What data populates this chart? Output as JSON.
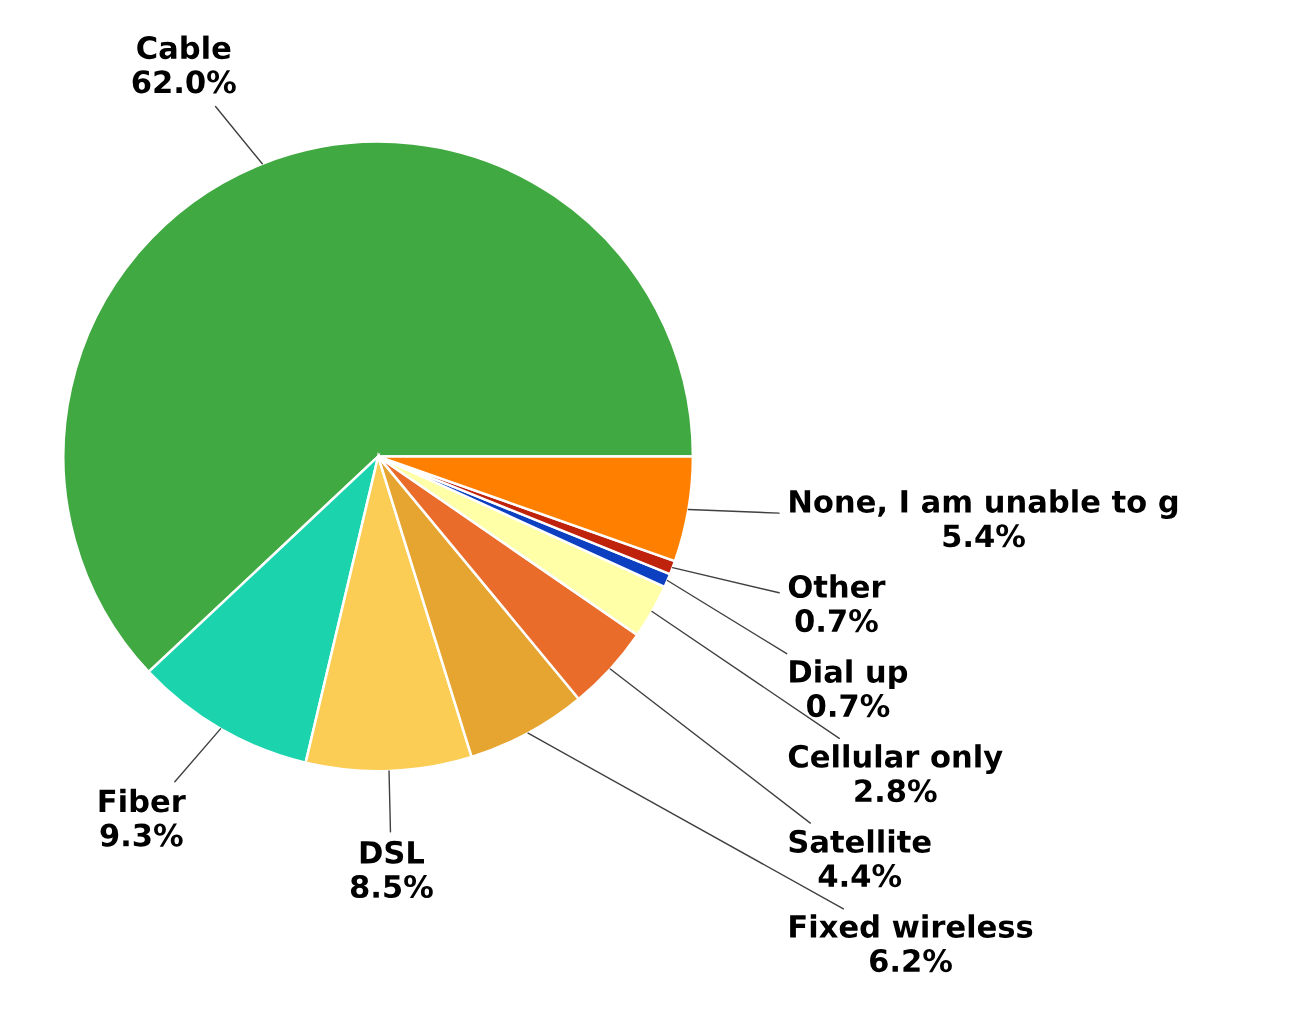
{
  "chart_data": {
    "type": "pie",
    "categories": [
      "Cable",
      "Fiber",
      "DSL",
      "Fixed wireless",
      "Satellite",
      "Cellular only",
      "Dial up",
      "Other",
      "None, I am unable to g"
    ],
    "values": [
      62.0,
      9.3,
      8.5,
      6.2,
      4.4,
      2.8,
      0.7,
      0.7,
      5.4
    ],
    "value_labels": [
      "62.0%",
      "9.3%",
      "8.5%",
      "6.2%",
      "4.4%",
      "2.8%",
      "0.7%",
      "0.7%",
      "5.4%"
    ],
    "colors": [
      "#41a941",
      "#1bd4ae",
      "#fbcd55",
      "#e5a530",
      "#e96c2b",
      "#ffffa8",
      "#0c40c0",
      "#c0230b",
      "#ff8000"
    ],
    "legend": false
  }
}
